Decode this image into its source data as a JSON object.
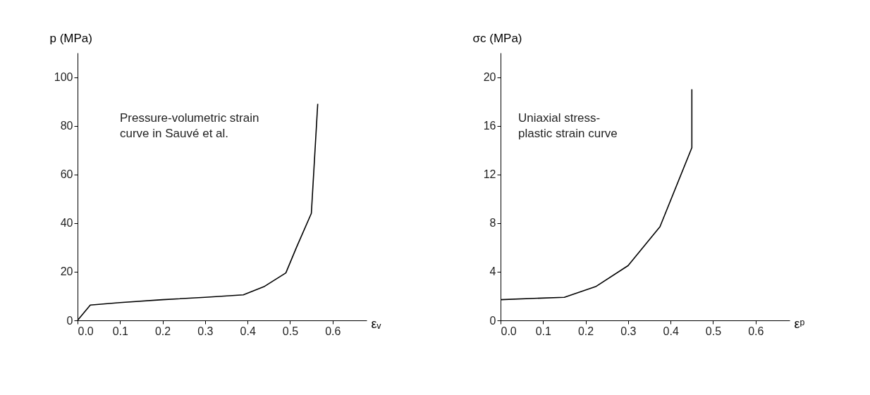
{
  "chart_data": [
    {
      "type": "line",
      "ylabel": "p (MPa)",
      "xlabel": "εᵥ",
      "x": [
        0,
        0.03,
        0.1,
        0.2,
        0.3,
        0.39,
        0.44,
        0.49,
        0.515,
        0.55,
        0.565
      ],
      "series": [
        {
          "color": "#000000",
          "values": [
            0,
            6.3,
            7.3,
            8.5,
            9.5,
            10.5,
            14,
            19.5,
            30,
            44,
            89
          ]
        }
      ],
      "xlim": [
        0,
        0.68
      ],
      "xticks": [
        {
          "value": 0,
          "label": "0.0"
        },
        {
          "value": 0.1,
          "label": "0.1"
        },
        {
          "value": 0.2,
          "label": "0.2"
        },
        {
          "value": 0.3,
          "label": "0.3"
        },
        {
          "value": 0.4,
          "label": "0.4"
        },
        {
          "value": 0.5,
          "label": "0.5"
        },
        {
          "value": 0.6,
          "label": "0.6"
        }
      ],
      "ylim": [
        0,
        110
      ],
      "yticks": [
        0,
        20,
        40,
        60,
        80,
        100
      ],
      "grid": false,
      "line_style": "solid",
      "marker": "none",
      "annotations": [
        "Pressure-volumetric strain\ncurve in Sauvé et al."
      ]
    },
    {
      "type": "line",
      "ylabel": "σc (MPa)",
      "xlabel": "εᵖ",
      "x": [
        0,
        0.15,
        0.225,
        0.3,
        0.375,
        0.45,
        0.45
      ],
      "series": [
        {
          "color": "#000000",
          "values": [
            1.7,
            1.9,
            2.8,
            4.5,
            7.7,
            14.2,
            19
          ]
        }
      ],
      "xlim": [
        0,
        0.68
      ],
      "xticks": [
        {
          "value": 0,
          "label": "0.0"
        },
        {
          "value": 0.1,
          "label": "0.1"
        },
        {
          "value": 0.2,
          "label": "0.2"
        },
        {
          "value": 0.3,
          "label": "0.3"
        },
        {
          "value": 0.4,
          "label": "0.4"
        },
        {
          "value": 0.5,
          "label": "0.5"
        },
        {
          "value": 0.6,
          "label": "0.6"
        }
      ],
      "ylim": [
        0,
        22
      ],
      "yticks": [
        0,
        4,
        8,
        12,
        16,
        20
      ],
      "grid": false,
      "line_style": "solid",
      "marker": "none",
      "annotations": [
        "Uniaxial stress-\nplastic strain curve"
      ]
    }
  ]
}
